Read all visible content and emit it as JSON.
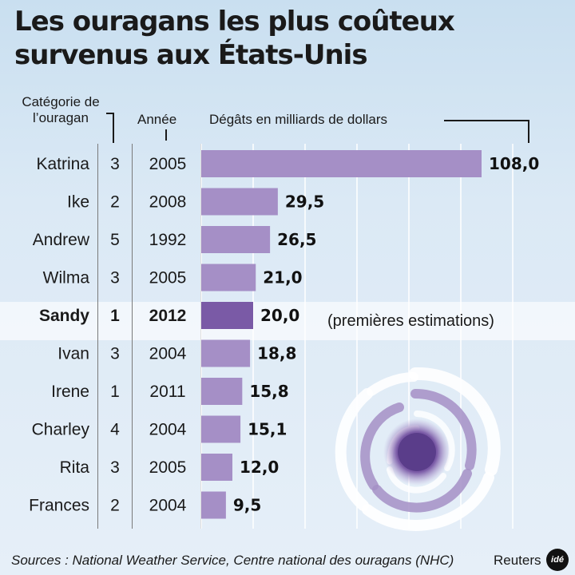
{
  "title": "Les ouragans les plus coûteux survenus aux États-Unis",
  "headers": {
    "category": "Catégorie de l’ouragan",
    "year": "Année",
    "damages": "Dégâts en milliards de dollars"
  },
  "note": "(premières estimations)",
  "source": "Sources : National Weather Service, Centre national des ouragans (NHC)",
  "credit": "Reuters",
  "logo_text": "idé",
  "colors": {
    "bar": "#a58fc6",
    "bar_highlight": "#7a5aa6",
    "highlight_band": "#ffffff",
    "background_top": "#c9dff0",
    "background_bottom": "#e6eff8"
  },
  "chart_data": {
    "type": "bar",
    "orientation": "horizontal",
    "categories": [
      "Katrina",
      "Ike",
      "Andrew",
      "Wilma",
      "Sandy",
      "Ivan",
      "Irene",
      "Charley",
      "Rita",
      "Frances"
    ],
    "hurricane_category": [
      "3",
      "2",
      "5",
      "3",
      "1",
      "3",
      "1",
      "4",
      "3",
      "2"
    ],
    "year": [
      "2005",
      "2008",
      "1992",
      "2005",
      "2012",
      "2004",
      "2011",
      "2004",
      "2005",
      "2004"
    ],
    "values": [
      108.0,
      29.5,
      26.5,
      21.0,
      20.0,
      18.8,
      15.8,
      15.1,
      12.0,
      9.5
    ],
    "value_labels": [
      "108,0",
      "29,5",
      "26,5",
      "21,0",
      "20,0",
      "18,8",
      "15,8",
      "15,1",
      "12,0",
      "9,5"
    ],
    "highlighted": "Sandy",
    "xlabel": "Dégâts en milliards de dollars",
    "xlim": [
      0,
      120
    ],
    "grid": true
  }
}
